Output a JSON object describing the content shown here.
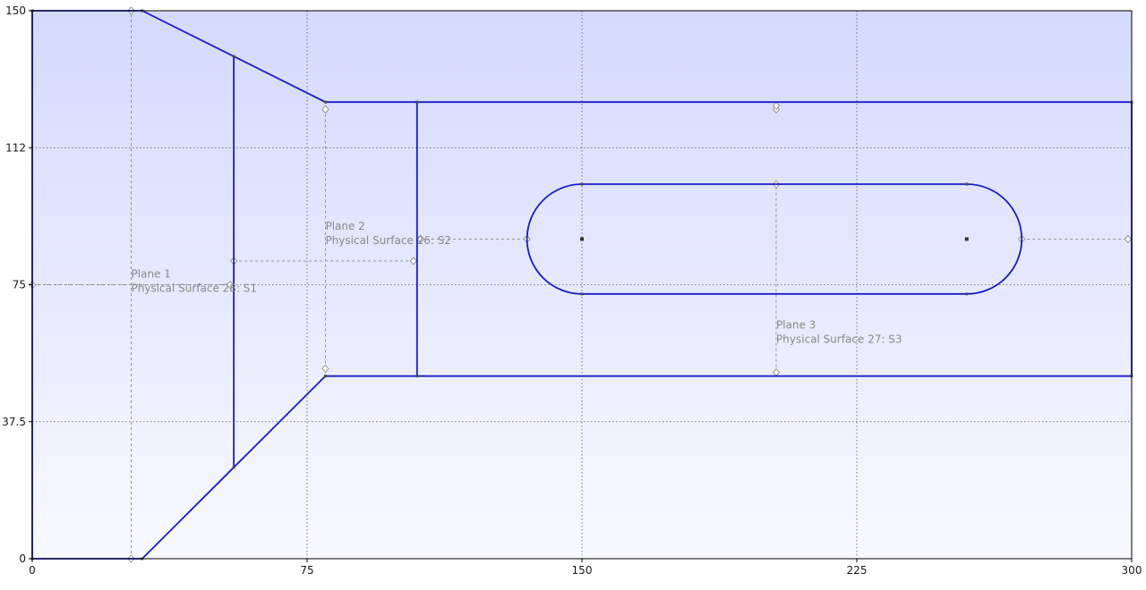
{
  "axes": {
    "x_ticks": [
      {
        "label": "0",
        "value": 0
      },
      {
        "label": "75",
        "value": 75
      },
      {
        "label": "150",
        "value": 150
      },
      {
        "label": "225",
        "value": 225
      },
      {
        "label": "300",
        "value": 300
      }
    ],
    "y_ticks": [
      {
        "label": "0",
        "value": 0
      },
      {
        "label": "37.5",
        "value": 37.5
      },
      {
        "label": "75",
        "value": 75
      },
      {
        "label": "112",
        "value": 112.5
      },
      {
        "label": "150",
        "value": 150
      }
    ],
    "x_range": [
      0,
      300
    ],
    "y_range": [
      0,
      150
    ]
  },
  "colors": {
    "geometry": "#1b1bc8",
    "grid": "#5a5a5a",
    "dimension": "#8a8a8a",
    "background_top": "#d4dafd",
    "background_bottom": "#f8f9ff",
    "annotation_text": "#8a8a8a"
  },
  "geometry": {
    "outline": [
      [
        0,
        0
      ],
      [
        30,
        0
      ],
      [
        80,
        50
      ],
      [
        300,
        50
      ],
      [
        300,
        125
      ],
      [
        80,
        125
      ],
      [
        30,
        150
      ],
      [
        0,
        150
      ]
    ],
    "divider_lines": [
      {
        "from": [
          55,
          25
        ],
        "to": [
          55,
          137.5
        ]
      },
      {
        "from": [
          105,
          50
        ],
        "to": [
          105,
          125
        ]
      }
    ],
    "slot": {
      "left_center": [
        150,
        87.5
      ],
      "right_center": [
        255,
        87.5
      ],
      "radius": 15
    }
  },
  "planes": [
    {
      "name": "Plane 1",
      "surface": "Physical Surface 28: S1",
      "anchor": [
        27,
        77
      ]
    },
    {
      "name": "Plane 2",
      "surface": "Physical Surface 26: S2",
      "anchor": [
        80,
        90
      ]
    },
    {
      "name": "Plane 3",
      "surface": "Physical Surface 27: S3",
      "anchor": [
        203,
        63
      ]
    }
  ],
  "dimensions": [
    {
      "from": [
        27,
        0
      ],
      "to": [
        27,
        150
      ]
    },
    {
      "from": [
        0,
        75
      ],
      "to": [
        54,
        75
      ]
    },
    {
      "from": [
        55,
        81.5
      ],
      "to": [
        104,
        81.5
      ]
    },
    {
      "from": [
        80,
        52
      ],
      "to": [
        80,
        123
      ]
    },
    {
      "from": [
        106,
        87.5
      ],
      "to": [
        135,
        87.5
      ]
    },
    {
      "from": [
        270,
        87.5
      ],
      "to": [
        299,
        87.5
      ]
    },
    {
      "from": [
        203,
        51
      ],
      "to": [
        203,
        102.5
      ]
    },
    {
      "from": [
        203,
        123
      ],
      "to": [
        203,
        124
      ]
    }
  ]
}
